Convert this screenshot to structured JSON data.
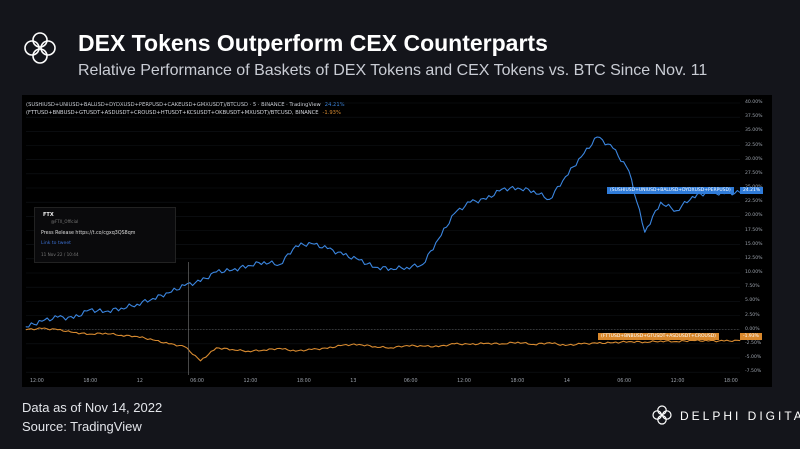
{
  "header": {
    "title": "DEX Tokens Outperform CEX Counterparts",
    "subtitle": "Relative Performance of Baskets of DEX Tokens and CEX Tokens vs. BTC Since Nov. 11"
  },
  "footer": {
    "date_note": "Data as of Nov 14, 2022",
    "source": "Source: TradingView",
    "brand": "DELPHI DIGITAL"
  },
  "popup": {
    "source": "FTX",
    "handle": "@FTX_Official",
    "text": "Press Release https://t.co/cgxq3QS8qm",
    "link": "Link to tweet",
    "date": "11 Nov 22 / 10:44"
  },
  "colors": {
    "dex": "#3b86e0",
    "cex": "#d78a30",
    "background": "#000000",
    "accent": "#2f7bd8"
  },
  "chart_data": {
    "type": "line",
    "y_unit": "%",
    "yticks": [
      "40.00%",
      "37.50%",
      "35.00%",
      "32.50%",
      "30.00%",
      "27.50%",
      "25.00%",
      "22.50%",
      "20.00%",
      "17.50%",
      "15.00%",
      "12.50%",
      "10.00%",
      "7.50%",
      "5.00%",
      "2.50%",
      "0.00%",
      "-2.50%",
      "-5.00%",
      "-7.50%"
    ],
    "xticks": [
      "12:00",
      "18:00",
      "12",
      "06:00",
      "12:00",
      "18:00",
      "13",
      "06:00",
      "12:00",
      "18:00",
      "14",
      "06:00",
      "12:00",
      "18:00"
    ],
    "ylim": [
      -8,
      40
    ],
    "series": [
      {
        "name": "(SUSHIUSD+UNIUSD+BALUSD+DYDXUSD+PERPUSD+CAKEUSD+GMXUSDT)/BTCUSD · 5 · BINANCE · TradingView",
        "legend_value": "24.21%",
        "end_label": "(SUSHIUSD+UNIUSD+BALUSD+DYDXUSD+PERPUSD)",
        "value_label": "24.21%",
        "x": [
          0,
          2,
          4,
          6,
          8,
          10,
          12,
          14,
          16,
          18,
          20,
          22,
          24,
          26,
          28,
          30,
          32,
          34,
          36,
          38,
          40,
          42,
          44,
          46,
          48,
          50,
          52,
          54,
          56,
          58,
          60,
          62,
          64,
          66,
          68,
          70,
          72,
          74,
          76,
          78,
          80,
          82,
          84,
          86,
          88,
          90
        ],
        "y": [
          0.5,
          1.5,
          2.2,
          2.0,
          3.5,
          3.2,
          3.8,
          4.5,
          5.5,
          6.5,
          7.8,
          8.5,
          10.2,
          10.5,
          11.3,
          12.0,
          11.5,
          14.8,
          15.2,
          14.3,
          13.2,
          12.3,
          11.0,
          10.8,
          11.0,
          11.5,
          16.0,
          20.5,
          22.5,
          23.0,
          24.8,
          25.0,
          24.5,
          23.0,
          27.0,
          30.5,
          34.0,
          32.0,
          28.0,
          17.2,
          22.5,
          21.0,
          23.5,
          24.2,
          24.0,
          24.21
        ]
      },
      {
        "name": "(FTTUSD+BNBUSD+GTUSDT+ASDUSDT+CROUSD+HTUSDT+KCSUSDT+OKBUSDT+MXUSDT)/BTCUSD, BINANCE",
        "legend_value": "-1.93%",
        "end_label": "(FTTUSD+BNBUSD+GTUSDT+ASDUSDT+CROUSD)",
        "value_label": "-1.93%",
        "x": [
          0,
          2,
          4,
          6,
          8,
          10,
          12,
          14,
          16,
          18,
          20,
          22,
          24,
          26,
          28,
          30,
          32,
          34,
          36,
          38,
          40,
          42,
          44,
          46,
          48,
          50,
          52,
          54,
          56,
          58,
          60,
          62,
          64,
          66,
          68,
          70,
          72,
          74,
          76,
          78,
          80,
          82,
          84,
          86,
          88,
          90
        ],
        "y": [
          0.0,
          0.2,
          0.0,
          -0.5,
          -0.8,
          -0.6,
          -1.0,
          -1.2,
          -1.8,
          -2.5,
          -3.0,
          -5.5,
          -3.2,
          -3.5,
          -3.8,
          -3.6,
          -3.3,
          -3.8,
          -3.5,
          -3.3,
          -2.7,
          -2.6,
          -3.0,
          -3.2,
          -2.8,
          -2.9,
          -3.0,
          -2.5,
          -2.6,
          -2.4,
          -2.5,
          -2.2,
          -2.6,
          -2.3,
          -2.8,
          -2.5,
          -2.4,
          -2.3,
          -2.1,
          -2.2,
          -2.0,
          -2.1,
          -1.9,
          -2.0,
          -2.0,
          -1.93
        ]
      }
    ]
  }
}
